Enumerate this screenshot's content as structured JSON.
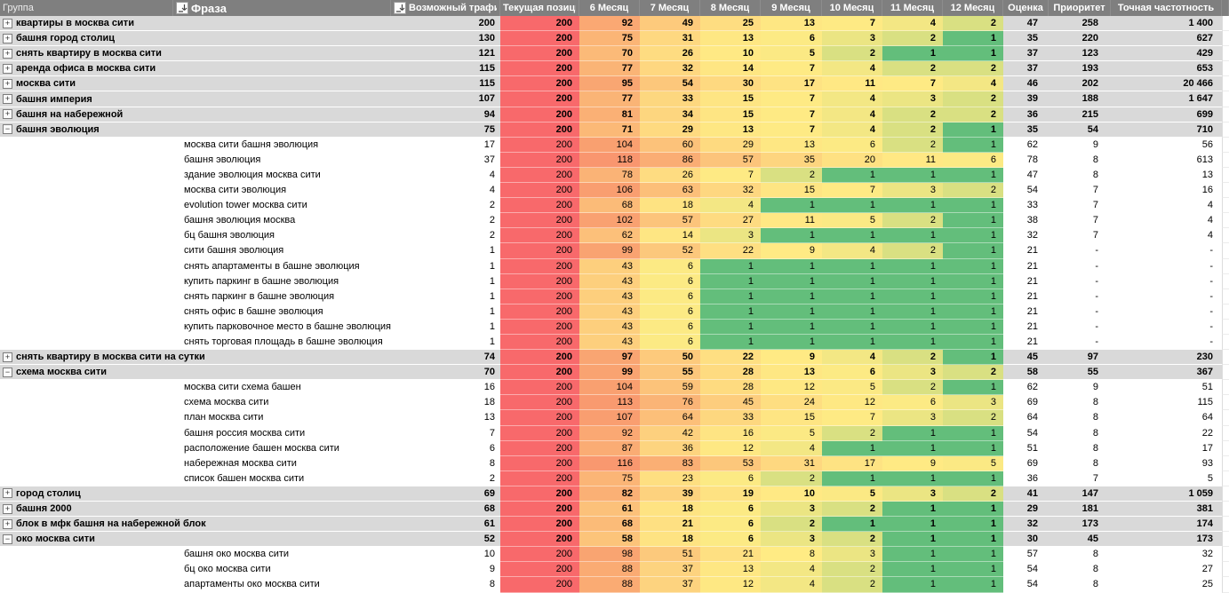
{
  "header": {
    "columns": [
      {
        "key": "group",
        "label": "Группа"
      },
      {
        "key": "phrase",
        "label": "Фраза",
        "has_filter": true
      },
      {
        "key": "possible-traffic",
        "label": "Возможный трафик",
        "has_filter": true
      },
      {
        "key": "current-position",
        "label": "Текущая позиция"
      },
      {
        "key": "month-6",
        "label": "6 Месяц"
      },
      {
        "key": "month-7",
        "label": "7 Месяц"
      },
      {
        "key": "month-8",
        "label": "8 Месяц"
      },
      {
        "key": "month-9",
        "label": "9 Месяц"
      },
      {
        "key": "month-10",
        "label": "10 Месяц"
      },
      {
        "key": "month-11",
        "label": "11 Месяц"
      },
      {
        "key": "month-12",
        "label": "12 Месяц"
      },
      {
        "key": "score",
        "label": "Оценка"
      },
      {
        "key": "priority",
        "label": "Приоритет"
      },
      {
        "key": "exact-frequency",
        "label": "Точная частотность"
      },
      {
        "key": "scroll-stub",
        "label": ""
      }
    ]
  },
  "icons": {
    "filter_sort": "down-arrow-with-bar",
    "expand_collapsed": "+",
    "expand_expanded": "−"
  },
  "colors": {
    "header_bg": "#7F7F7F",
    "group_row_bg": "#D9D9D9",
    "heat_red": "#F8696B",
    "heat_yellow": "#FFEB84",
    "heat_green": "#63BE7B",
    "heat_scale": [
      [
        1,
        "#63BE7B"
      ],
      [
        2,
        "#D9E082"
      ],
      [
        3,
        "#EBE583"
      ],
      [
        5,
        "#FBE984"
      ],
      [
        8,
        "#FFEB84"
      ],
      [
        15,
        "#FEE583"
      ],
      [
        25,
        "#FEDD81"
      ],
      [
        40,
        "#FDD17E"
      ],
      [
        60,
        "#FCC27A"
      ],
      [
        80,
        "#FAB175"
      ],
      [
        105,
        "#F99F70"
      ],
      [
        140,
        "#F9886D"
      ],
      [
        200,
        "#F8696B"
      ]
    ]
  },
  "table": {
    "rows": [
      {
        "type": "group",
        "expand": "+",
        "phrase": "квартиры в москва сити",
        "traffic": "200",
        "values": [
          200,
          92,
          49,
          25,
          13,
          7,
          4,
          2
        ],
        "score": "47",
        "priority": "258",
        "freq": "1 400"
      },
      {
        "type": "group",
        "expand": "+",
        "phrase": "башня город столиц",
        "traffic": "130",
        "values": [
          200,
          75,
          31,
          13,
          6,
          3,
          2,
          1
        ],
        "score": "35",
        "priority": "220",
        "freq": "627"
      },
      {
        "type": "group",
        "expand": "+",
        "phrase": "снять квартиру в москва сити",
        "traffic": "121",
        "values": [
          200,
          70,
          26,
          10,
          5,
          2,
          1,
          1
        ],
        "score": "37",
        "priority": "123",
        "freq": "429"
      },
      {
        "type": "group",
        "expand": "+",
        "phrase": "аренда офиса в москва сити",
        "traffic": "115",
        "values": [
          200,
          77,
          32,
          14,
          7,
          4,
          2,
          2
        ],
        "score": "37",
        "priority": "193",
        "freq": "653"
      },
      {
        "type": "group",
        "expand": "+",
        "phrase": "москва сити",
        "traffic": "115",
        "values": [
          200,
          95,
          54,
          30,
          17,
          11,
          7,
          4
        ],
        "score": "46",
        "priority": "202",
        "freq": "20 466"
      },
      {
        "type": "group",
        "expand": "+",
        "phrase": "башня империя",
        "traffic": "107",
        "values": [
          200,
          77,
          33,
          15,
          7,
          4,
          3,
          2
        ],
        "score": "39",
        "priority": "188",
        "freq": "1 647"
      },
      {
        "type": "group",
        "expand": "+",
        "phrase": "башня на набережной",
        "traffic": "94",
        "values": [
          200,
          81,
          34,
          15,
          7,
          4,
          2,
          2
        ],
        "score": "36",
        "priority": "215",
        "freq": "699"
      },
      {
        "type": "group",
        "expand": "−",
        "phrase": "башня эволюция",
        "traffic": "75",
        "values": [
          200,
          71,
          29,
          13,
          7,
          4,
          2,
          1
        ],
        "score": "35",
        "priority": "54",
        "freq": "710"
      },
      {
        "type": "child",
        "phrase": "москва сити башня эволюция",
        "traffic": "17",
        "values": [
          200,
          104,
          60,
          29,
          13,
          6,
          2,
          1
        ],
        "score": "62",
        "priority": "9",
        "freq": "56"
      },
      {
        "type": "child",
        "phrase": "башня эволюция",
        "traffic": "37",
        "values": [
          200,
          118,
          86,
          57,
          35,
          20,
          11,
          6
        ],
        "score": "78",
        "priority": "8",
        "freq": "613"
      },
      {
        "type": "child",
        "phrase": "здание эволюция москва сити",
        "traffic": "4",
        "values": [
          200,
          78,
          26,
          7,
          2,
          1,
          1,
          1
        ],
        "score": "47",
        "priority": "8",
        "freq": "13"
      },
      {
        "type": "child",
        "phrase": "москва сити эволюция",
        "traffic": "4",
        "values": [
          200,
          106,
          63,
          32,
          15,
          7,
          3,
          2
        ],
        "score": "54",
        "priority": "7",
        "freq": "16"
      },
      {
        "type": "child",
        "phrase": "evolution tower москва сити",
        "traffic": "2",
        "values": [
          200,
          68,
          18,
          4,
          1,
          1,
          1,
          1
        ],
        "score": "33",
        "priority": "7",
        "freq": "4"
      },
      {
        "type": "child",
        "phrase": "башня эволюция москва",
        "traffic": "2",
        "values": [
          200,
          102,
          57,
          27,
          11,
          5,
          2,
          1
        ],
        "score": "38",
        "priority": "7",
        "freq": "4"
      },
      {
        "type": "child",
        "phrase": "бц башня эволюция",
        "traffic": "2",
        "values": [
          200,
          62,
          14,
          3,
          1,
          1,
          1,
          1
        ],
        "score": "32",
        "priority": "7",
        "freq": "4"
      },
      {
        "type": "child",
        "phrase": "сити башня эволюция",
        "traffic": "1",
        "values": [
          200,
          99,
          52,
          22,
          9,
          4,
          2,
          1
        ],
        "score": "21",
        "priority": "-",
        "freq": "-"
      },
      {
        "type": "child",
        "phrase": "снять апартаменты в башне эволюция",
        "traffic": "1",
        "values": [
          200,
          43,
          6,
          1,
          1,
          1,
          1,
          1
        ],
        "score": "21",
        "priority": "-",
        "freq": "-"
      },
      {
        "type": "child",
        "phrase": "купить паркинг в башне эволюция",
        "traffic": "1",
        "values": [
          200,
          43,
          6,
          1,
          1,
          1,
          1,
          1
        ],
        "score": "21",
        "priority": "-",
        "freq": "-"
      },
      {
        "type": "child",
        "phrase": "снять паркинг в башне эволюция",
        "traffic": "1",
        "values": [
          200,
          43,
          6,
          1,
          1,
          1,
          1,
          1
        ],
        "score": "21",
        "priority": "-",
        "freq": "-"
      },
      {
        "type": "child",
        "phrase": "снять офис в башне эволюция",
        "traffic": "1",
        "values": [
          200,
          43,
          6,
          1,
          1,
          1,
          1,
          1
        ],
        "score": "21",
        "priority": "-",
        "freq": "-"
      },
      {
        "type": "child",
        "phrase": "купить парковочное место в башне эволюция",
        "traffic": "1",
        "values": [
          200,
          43,
          6,
          1,
          1,
          1,
          1,
          1
        ],
        "score": "21",
        "priority": "-",
        "freq": "-"
      },
      {
        "type": "child",
        "phrase": "снять торговая площадь в башне эволюция",
        "traffic": "1",
        "values": [
          200,
          43,
          6,
          1,
          1,
          1,
          1,
          1
        ],
        "score": "21",
        "priority": "-",
        "freq": "-"
      },
      {
        "type": "group",
        "expand": "+",
        "phrase": "снять квартиру в москва сити на сутки",
        "traffic": "74",
        "values": [
          200,
          97,
          50,
          22,
          9,
          4,
          2,
          1
        ],
        "score": "45",
        "priority": "97",
        "freq": "230"
      },
      {
        "type": "group",
        "expand": "−",
        "phrase": "схема москва сити",
        "traffic": "70",
        "values": [
          200,
          99,
          55,
          28,
          13,
          6,
          3,
          2
        ],
        "score": "58",
        "priority": "55",
        "freq": "367"
      },
      {
        "type": "child",
        "phrase": "москва сити схема башен",
        "traffic": "16",
        "values": [
          200,
          104,
          59,
          28,
          12,
          5,
          2,
          1
        ],
        "score": "62",
        "priority": "9",
        "freq": "51"
      },
      {
        "type": "child",
        "phrase": "схема москва сити",
        "traffic": "18",
        "values": [
          200,
          113,
          76,
          45,
          24,
          12,
          6,
          3
        ],
        "score": "69",
        "priority": "8",
        "freq": "115"
      },
      {
        "type": "child",
        "phrase": "план москва сити",
        "traffic": "13",
        "values": [
          200,
          107,
          64,
          33,
          15,
          7,
          3,
          2
        ],
        "score": "64",
        "priority": "8",
        "freq": "64"
      },
      {
        "type": "child",
        "phrase": "башня россия москва сити",
        "traffic": "7",
        "values": [
          200,
          92,
          42,
          16,
          5,
          2,
          1,
          1
        ],
        "score": "54",
        "priority": "8",
        "freq": "22"
      },
      {
        "type": "child",
        "phrase": "расположение башен москва сити",
        "traffic": "6",
        "values": [
          200,
          87,
          36,
          12,
          4,
          1,
          1,
          1
        ],
        "score": "51",
        "priority": "8",
        "freq": "17"
      },
      {
        "type": "child",
        "phrase": "набережная москва сити",
        "traffic": "8",
        "values": [
          200,
          116,
          83,
          53,
          31,
          17,
          9,
          5
        ],
        "score": "69",
        "priority": "8",
        "freq": "93"
      },
      {
        "type": "child",
        "phrase": "список башен москва сити",
        "traffic": "2",
        "values": [
          200,
          75,
          23,
          6,
          2,
          1,
          1,
          1
        ],
        "score": "36",
        "priority": "7",
        "freq": "5"
      },
      {
        "type": "group",
        "expand": "+",
        "phrase": "город столиц",
        "traffic": "69",
        "values": [
          200,
          82,
          39,
          19,
          10,
          5,
          3,
          2
        ],
        "score": "41",
        "priority": "147",
        "freq": "1 059"
      },
      {
        "type": "group",
        "expand": "+",
        "phrase": "башня 2000",
        "traffic": "68",
        "values": [
          200,
          61,
          18,
          6,
          3,
          2,
          1,
          1
        ],
        "score": "29",
        "priority": "181",
        "freq": "381"
      },
      {
        "type": "group",
        "expand": "+",
        "phrase": "блок в мфк башня на набережной блок",
        "traffic": "61",
        "values": [
          200,
          68,
          21,
          6,
          2,
          1,
          1,
          1
        ],
        "score": "32",
        "priority": "173",
        "freq": "174"
      },
      {
        "type": "group",
        "expand": "−",
        "phrase": "око москва сити",
        "traffic": "52",
        "values": [
          200,
          58,
          18,
          6,
          3,
          2,
          1,
          1
        ],
        "score": "30",
        "priority": "45",
        "freq": "173"
      },
      {
        "type": "child",
        "phrase": "башня око москва сити",
        "traffic": "10",
        "values": [
          200,
          98,
          51,
          21,
          8,
          3,
          1,
          1
        ],
        "score": "57",
        "priority": "8",
        "freq": "32"
      },
      {
        "type": "child",
        "phrase": "бц око москва сити",
        "traffic": "9",
        "values": [
          200,
          88,
          37,
          13,
          4,
          2,
          1,
          1
        ],
        "score": "54",
        "priority": "8",
        "freq": "27"
      },
      {
        "type": "child",
        "phrase": "апартаменты око москва сити",
        "traffic": "8",
        "values": [
          200,
          88,
          37,
          12,
          4,
          2,
          1,
          1
        ],
        "score": "54",
        "priority": "8",
        "freq": "25"
      }
    ]
  }
}
